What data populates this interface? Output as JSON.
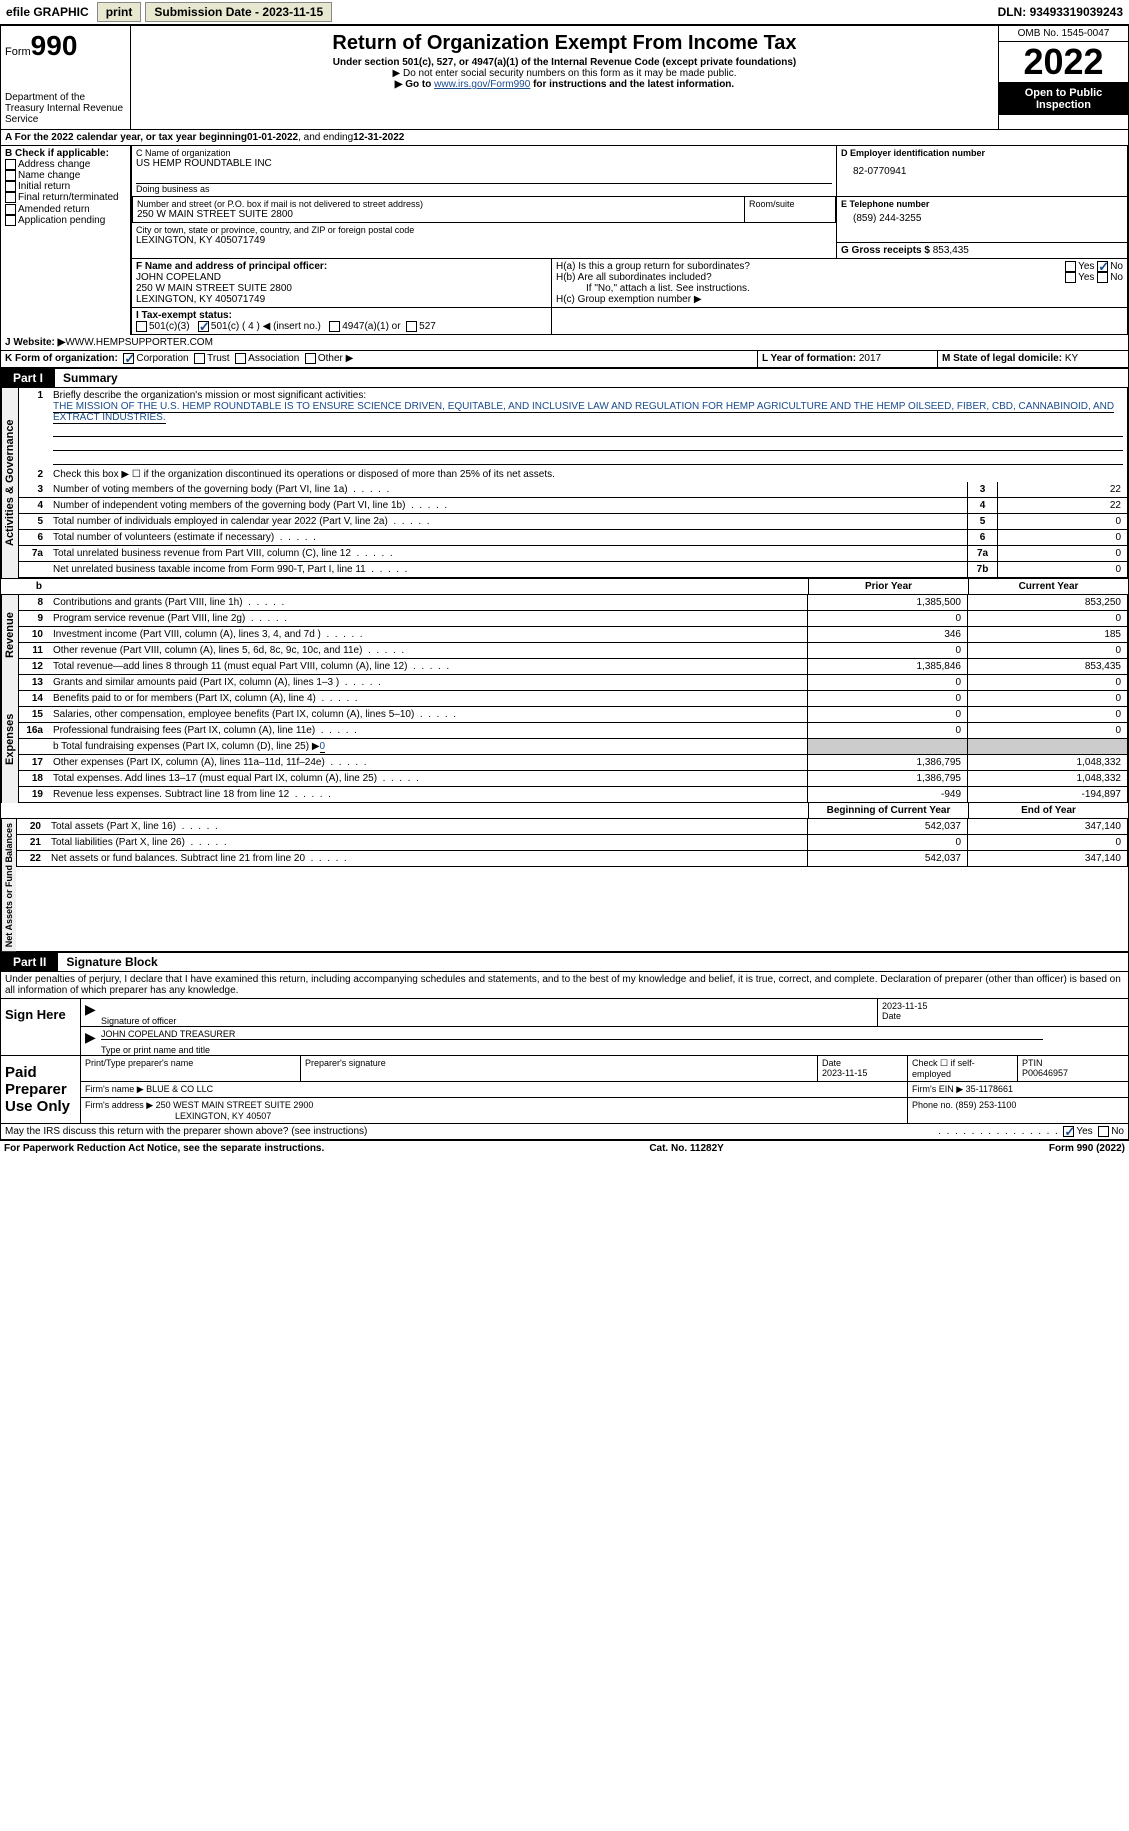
{
  "topbar": {
    "efile": "efile GRAPHIC",
    "print": "print",
    "sub_label": "Submission Date - ",
    "sub_date": "2023-11-15",
    "dln_label": "DLN: ",
    "dln": "93493319039243"
  },
  "header": {
    "form_prefix": "Form",
    "form_num": "990",
    "dept": "Department of the Treasury Internal Revenue Service",
    "title": "Return of Organization Exempt From Income Tax",
    "sub1": "Under section 501(c), 527, or 4947(a)(1) of the Internal Revenue Code (except private foundations)",
    "sub2": "▶ Do not enter social security numbers on this form as it may be made public.",
    "sub3_pre": "▶ Go to ",
    "sub3_link": "www.irs.gov/Form990",
    "sub3_post": " for instructions and the latest information.",
    "omb": "OMB No. 1545-0047",
    "year": "2022",
    "open": "Open to Public Inspection"
  },
  "period": {
    "text_a": "A For the 2022 calendar year, or tax year beginning ",
    "begin": "01-01-2022",
    "text_mid": " , and ending ",
    "end": "12-31-2022"
  },
  "boxB": {
    "label": "B Check if applicable:",
    "opts": [
      "Address change",
      "Name change",
      "Initial return",
      "Final return/terminated",
      "Amended return",
      "Application pending"
    ]
  },
  "boxC": {
    "name_label": "C Name of organization",
    "name": "US HEMP ROUNDTABLE INC",
    "dba_label": "Doing business as",
    "addr_label": "Number and street (or P.O. box if mail is not delivered to street address)",
    "room_label": "Room/suite",
    "addr": "250 W MAIN STREET SUITE 2800",
    "city_label": "City or town, state or province, country, and ZIP or foreign postal code",
    "city": "LEXINGTON, KY  405071749"
  },
  "boxD": {
    "label": "D Employer identification number",
    "value": "82-0770941"
  },
  "boxE": {
    "label": "E Telephone number",
    "value": "(859) 244-3255"
  },
  "boxG": {
    "label": "G Gross receipts $ ",
    "value": "853,435"
  },
  "boxF": {
    "label": "F Name and address of principal officer:",
    "name": "JOHN COPELAND",
    "addr1": "250 W MAIN STREET SUITE 2800",
    "addr2": "LEXINGTON, KY  405071749"
  },
  "boxH": {
    "a_label": "H(a)  Is this a group return for subordinates?",
    "b_label": "H(b)  Are all subordinates included?",
    "b_note": "If \"No,\" attach a list. See instructions.",
    "c_label": "H(c)  Group exemption number ▶",
    "yes": "Yes",
    "no": "No"
  },
  "boxI": {
    "label": "I  Tax-exempt status:",
    "opt1": "501(c)(3)",
    "opt2": "501(c) ( 4 ) ◀ (insert no.)",
    "opt3": "4947(a)(1) or",
    "opt4": "527"
  },
  "boxJ": {
    "label": "J  Website: ▶  ",
    "value": "WWW.HEMPSUPPORTER.COM"
  },
  "boxK": {
    "label": "K Form of organization:",
    "opts": [
      "Corporation",
      "Trust",
      "Association",
      "Other ▶"
    ]
  },
  "boxL": {
    "label": "L Year of formation: ",
    "value": "2017"
  },
  "boxM": {
    "label": "M State of legal domicile: ",
    "value": "KY"
  },
  "part1": {
    "num": "Part I",
    "title": "Summary"
  },
  "summary": {
    "side_gov": "Activities & Governance",
    "side_rev": "Revenue",
    "side_exp": "Expenses",
    "side_net": "Net Assets or Fund Balances",
    "l1_label": "Briefly describe the organization's mission or most significant activities:",
    "l1_text": "THE MISSION OF THE U.S. HEMP ROUNDTABLE IS TO ENSURE SCIENCE DRIVEN, EQUITABLE, AND INCLUSIVE LAW AND REGULATION FOR HEMP AGRICULTURE AND THE HEMP OILSEED, FIBER, CBD, CANNABINOID, AND EXTRACT INDUSTRIES.",
    "l2": "Check this box ▶ ☐ if the organization discontinued its operations or disposed of more than 25% of its net assets.",
    "rows_top": [
      {
        "n": "3",
        "d": "Number of voting members of the governing body (Part VI, line 1a)",
        "b": "3",
        "v": "22"
      },
      {
        "n": "4",
        "d": "Number of independent voting members of the governing body (Part VI, line 1b)",
        "b": "4",
        "v": "22"
      },
      {
        "n": "5",
        "d": "Total number of individuals employed in calendar year 2022 (Part V, line 2a)",
        "b": "5",
        "v": "0"
      },
      {
        "n": "6",
        "d": "Total number of volunteers (estimate if necessary)",
        "b": "6",
        "v": "0"
      },
      {
        "n": "7a",
        "d": "Total unrelated business revenue from Part VIII, column (C), line 12",
        "b": "7a",
        "v": "0"
      },
      {
        "n": "",
        "d": "Net unrelated business taxable income from Form 990-T, Part I, line 11",
        "b": "7b",
        "v": "0"
      }
    ],
    "col_prior": "Prior Year",
    "col_current": "Current Year",
    "col_begin": "Beginning of Current Year",
    "col_end": "End of Year",
    "rows_rev": [
      {
        "n": "8",
        "d": "Contributions and grants (Part VIII, line 1h)",
        "p": "1,385,500",
        "c": "853,250"
      },
      {
        "n": "9",
        "d": "Program service revenue (Part VIII, line 2g)",
        "p": "0",
        "c": "0"
      },
      {
        "n": "10",
        "d": "Investment income (Part VIII, column (A), lines 3, 4, and 7d )",
        "p": "346",
        "c": "185"
      },
      {
        "n": "11",
        "d": "Other revenue (Part VIII, column (A), lines 5, 6d, 8c, 9c, 10c, and 11e)",
        "p": "0",
        "c": "0"
      },
      {
        "n": "12",
        "d": "Total revenue—add lines 8 through 11 (must equal Part VIII, column (A), line 12)",
        "p": "1,385,846",
        "c": "853,435"
      }
    ],
    "rows_exp": [
      {
        "n": "13",
        "d": "Grants and similar amounts paid (Part IX, column (A), lines 1–3 )",
        "p": "0",
        "c": "0"
      },
      {
        "n": "14",
        "d": "Benefits paid to or for members (Part IX, column (A), line 4)",
        "p": "0",
        "c": "0"
      },
      {
        "n": "15",
        "d": "Salaries, other compensation, employee benefits (Part IX, column (A), lines 5–10)",
        "p": "0",
        "c": "0"
      },
      {
        "n": "16a",
        "d": "Professional fundraising fees (Part IX, column (A), line 11e)",
        "p": "0",
        "c": "0"
      }
    ],
    "l16b_pre": "b  Total fundraising expenses (Part IX, column (D), line 25) ▶",
    "l16b_val": "0",
    "rows_exp2": [
      {
        "n": "17",
        "d": "Other expenses (Part IX, column (A), lines 11a–11d, 11f–24e)",
        "p": "1,386,795",
        "c": "1,048,332"
      },
      {
        "n": "18",
        "d": "Total expenses. Add lines 13–17 (must equal Part IX, column (A), line 25)",
        "p": "1,386,795",
        "c": "1,048,332"
      },
      {
        "n": "19",
        "d": "Revenue less expenses. Subtract line 18 from line 12",
        "p": "-949",
        "c": "-194,897"
      }
    ],
    "rows_net": [
      {
        "n": "20",
        "d": "Total assets (Part X, line 16)",
        "p": "542,037",
        "c": "347,140"
      },
      {
        "n": "21",
        "d": "Total liabilities (Part X, line 26)",
        "p": "0",
        "c": "0"
      },
      {
        "n": "22",
        "d": "Net assets or fund balances. Subtract line 21 from line 20",
        "p": "542,037",
        "c": "347,140"
      }
    ]
  },
  "part2": {
    "num": "Part II",
    "title": "Signature Block"
  },
  "sig": {
    "penalty": "Under penalties of perjury, I declare that I have examined this return, including accompanying schedules and statements, and to the best of my knowledge and belief, it is true, correct, and complete. Declaration of preparer (other than officer) is based on all information of which preparer has any knowledge.",
    "sign_here": "Sign Here",
    "sig_officer": "Signature of officer",
    "sig_date": "2023-11-15",
    "date_lbl": "Date",
    "officer_name": "JOHN COPELAND TREASURER",
    "name_lbl": "Type or print name and title",
    "paid": "Paid Preparer Use Only",
    "prep_name_lbl": "Print/Type preparer's name",
    "prep_sig_lbl": "Preparer's signature",
    "prep_date_lbl": "Date",
    "prep_date": "2023-11-15",
    "self_emp": "Check ☐ if self-employed",
    "ptin_lbl": "PTIN",
    "ptin": "P00646957",
    "firm_name_lbl": "Firm's name    ▶ ",
    "firm_name": "BLUE & CO LLC",
    "firm_ein_lbl": "Firm's EIN ▶ ",
    "firm_ein": "35-1178661",
    "firm_addr_lbl": "Firm's address ▶ ",
    "firm_addr1": "250 WEST MAIN STREET SUITE 2900",
    "firm_addr2": "LEXINGTON, KY  40507",
    "phone_lbl": "Phone no. ",
    "phone": "(859) 253-1100",
    "discuss": "May the IRS discuss this return with the preparer shown above? (see instructions)",
    "yes": "Yes",
    "no": "No"
  },
  "footer": {
    "left": "For Paperwork Reduction Act Notice, see the separate instructions.",
    "mid": "Cat. No. 11282Y",
    "right": "Form 990 (2022)"
  }
}
